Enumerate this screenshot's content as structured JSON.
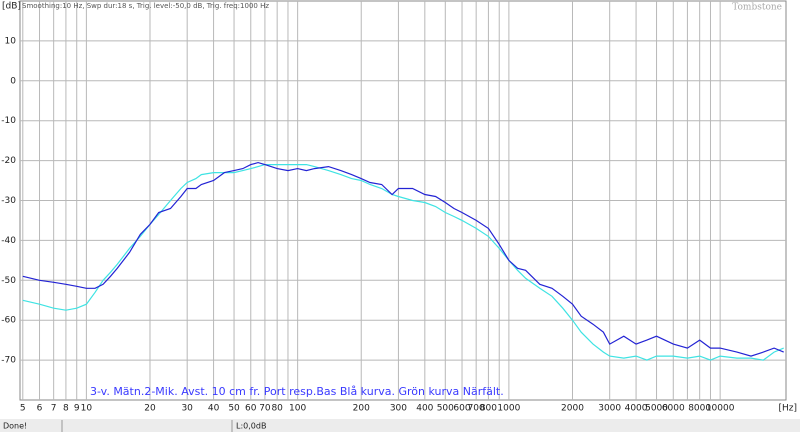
{
  "chart_data": {
    "type": "line",
    "subtitle": "Smoothing:10 Hz, Swp dur:18 s, Trig. level:-50,0 dB, Trig. freq:1000 Hz",
    "watermark": "Tombstone",
    "y_label": "[dB]",
    "x_label": "[Hz]",
    "annotation": "3-v. Mätn.2-Mik. Avst. 10 cm fr. Port resp.Bas Blå kurva. Grön kurva Närfält.",
    "log_x": true,
    "grid": true,
    "xlim": [
      4.85,
      20500
    ],
    "ylim": [
      -80,
      20
    ],
    "yticks": [
      10,
      0,
      -10,
      -20,
      -30,
      -40,
      -50,
      -60,
      -70
    ],
    "xticks": [
      5,
      6,
      7,
      8,
      9,
      10,
      20,
      30,
      40,
      50,
      60,
      70,
      80,
      100,
      200,
      300,
      400,
      500,
      600,
      700,
      800,
      1000,
      2000,
      3000,
      4000,
      5000,
      6000,
      8000,
      10000
    ],
    "xgrid_minor": [
      90,
      900,
      7000,
      9000
    ],
    "x": [
      5,
      6,
      7,
      8,
      9,
      10,
      11,
      12,
      13,
      14,
      16,
      18,
      20,
      22,
      25,
      28,
      30,
      33,
      35,
      40,
      45,
      50,
      55,
      60,
      65,
      70,
      80,
      90,
      100,
      110,
      120,
      140,
      160,
      180,
      200,
      220,
      250,
      280,
      300,
      350,
      400,
      450,
      500,
      550,
      600,
      700,
      800,
      900,
      1000,
      1100,
      1200,
      1400,
      1600,
      1800,
      2000,
      2200,
      2500,
      2800,
      3000,
      3500,
      4000,
      4500,
      5000,
      6000,
      7000,
      8000,
      9000,
      10000,
      12000,
      14000,
      16000,
      18000,
      20000
    ],
    "series": [
      {
        "color": "#2323d4",
        "values": [
          -49,
          -50,
          -50.5,
          -51,
          -51.5,
          -52,
          -52,
          -51,
          -49,
          -47,
          -43,
          -38.5,
          -36,
          -33,
          -32,
          -29,
          -27,
          -27,
          -26,
          -25,
          -23,
          -22.5,
          -22,
          -21,
          -20.5,
          -21,
          -22,
          -22.5,
          -22,
          -22.5,
          -22,
          -21.5,
          -22.5,
          -23.5,
          -24.5,
          -25.5,
          -26,
          -28.5,
          -27,
          -27,
          -28.5,
          -29,
          -30.5,
          -32,
          -33,
          -35,
          -37,
          -41,
          -45,
          -47,
          -47.5,
          -51,
          -52,
          -54,
          -56,
          -59,
          -61,
          -63,
          -66,
          -64,
          -66,
          -65,
          -64,
          -66,
          -67,
          -65,
          -67,
          -67,
          -68,
          -69,
          -68,
          -67,
          -68
        ]
      },
      {
        "color": "#3fe3e3",
        "values": [
          -55,
          -56,
          -57,
          -57.5,
          -57,
          -56,
          -53,
          -50,
          -48,
          -46,
          -42,
          -39,
          -36,
          -33.5,
          -30,
          -27,
          -25.5,
          -24.5,
          -23.5,
          -23,
          -23,
          -23,
          -22.5,
          -22,
          -21.5,
          -21,
          -21,
          -21,
          -21,
          -21,
          -21.5,
          -22.5,
          -23.5,
          -24.5,
          -25,
          -26,
          -27,
          -28.5,
          -29,
          -30,
          -30.5,
          -31.5,
          -33,
          -34,
          -35,
          -37,
          -39,
          -42,
          -45,
          -47.5,
          -49.5,
          -52,
          -54,
          -57,
          -60,
          -63,
          -66,
          -68,
          -69,
          -69.5,
          -69,
          -70,
          -69,
          -69,
          -69.5,
          -69,
          -70,
          -69,
          -69.5,
          -69.5,
          -70,
          -68,
          -67
        ]
      }
    ]
  },
  "status": {
    "left": "Done!",
    "middle": "L:0,0dB"
  }
}
